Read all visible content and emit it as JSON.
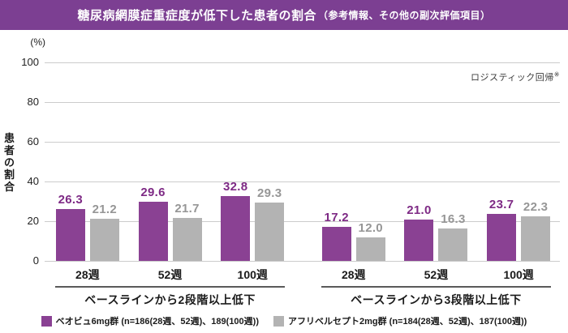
{
  "title": {
    "main": "糖尿病網膜症重症度が低下した患者の割合",
    "sub": "（参考情報、その他の副次評価項目）"
  },
  "note": {
    "text": "ロジスティック回帰",
    "mark": "※"
  },
  "y_axis": {
    "unit": "(%)",
    "title": "患者の割合",
    "ticks": [
      100,
      80,
      60,
      40,
      20,
      0
    ],
    "max": 100
  },
  "chart_data": {
    "type": "bar",
    "title": "糖尿病網膜症重症度が低下した患者の割合（参考情報、その他の副次評価項目）",
    "ylabel": "患者の割合",
    "y_unit": "%",
    "ylim": [
      0,
      100
    ],
    "yticks": [
      0,
      20,
      40,
      60,
      80,
      100
    ],
    "grid": true,
    "annotation": "ロジスティック回帰※",
    "groups": [
      {
        "label": "ベースラインから2段階以上低下",
        "categories": [
          "28週",
          "52週",
          "100週"
        ],
        "series": [
          {
            "name": "ベオビュ6mg群",
            "values": [
              26.3,
              29.6,
              32.8
            ]
          },
          {
            "name": "アフリベルセプト2mg群",
            "values": [
              21.2,
              21.7,
              29.3
            ]
          }
        ]
      },
      {
        "label": "ベースラインから3段階以上低下",
        "categories": [
          "28週",
          "52週",
          "100週"
        ],
        "series": [
          {
            "name": "ベオビュ6mg群",
            "values": [
              17.2,
              21.0,
              23.7
            ]
          },
          {
            "name": "アフリベルセプト2mg群",
            "values": [
              12.0,
              16.3,
              22.3
            ]
          }
        ]
      }
    ],
    "legend": [
      {
        "label": "ベオビュ6mg群 (n=186(28週、52週)、189(100週))",
        "color": "#8a4193"
      },
      {
        "label": "アフリベルセプト2mg群 (n=184(28週、52週)、187(100週))",
        "color": "#b3b3b3"
      }
    ],
    "legend_position": "bottom"
  },
  "colors": {
    "header_bg": "#7c3f92",
    "bar_series": [
      "#8a4193",
      "#b3b3b3"
    ],
    "value_text": [
      "#7e2a85",
      "#969696"
    ],
    "gridline": "#cccccc",
    "group_line": "#5a5a5a"
  }
}
